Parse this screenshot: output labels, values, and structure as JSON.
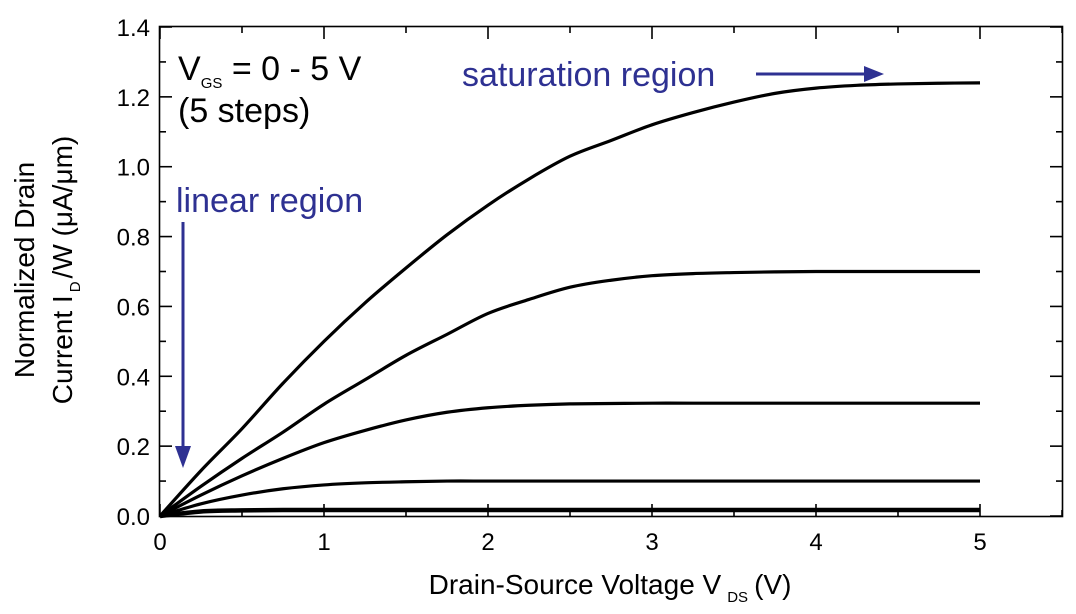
{
  "chart_data": {
    "type": "line",
    "xlabel_main": "Drain-Source Voltage V",
    "xlabel_sub": "DS",
    "xlabel_unit": "(V)",
    "ylabel_line1": "Normalized Drain",
    "ylabel_line2_a": "Current I",
    "ylabel_line2_sub": "D",
    "ylabel_line2_b": "/W (μA/μm)",
    "xlim": [
      0,
      5.5
    ],
    "ylim": [
      0,
      1.4
    ],
    "xticks": [
      0,
      1,
      2,
      3,
      4,
      5
    ],
    "xtick_labels": [
      "0",
      "1",
      "2",
      "3",
      "4",
      "5"
    ],
    "yticks": [
      0,
      0.2,
      0.4,
      0.6,
      0.8,
      1.0,
      1.2,
      1.4
    ],
    "ytick_labels": [
      "0.0",
      "0.2",
      "0.4",
      "0.6",
      "0.8",
      "1.0",
      "1.2",
      "1.4"
    ],
    "grid": false,
    "series": [
      {
        "x": [
          0,
          0.25,
          0.5,
          0.75,
          1.0,
          1.25,
          1.5,
          1.75,
          2.0,
          2.25,
          2.5,
          2.75,
          3.0,
          3.25,
          3.5,
          3.75,
          4.0,
          4.25,
          4.5,
          4.75,
          5.0
        ],
        "values": [
          0.0,
          0.013,
          0.016,
          0.017,
          0.017,
          0.017,
          0.017,
          0.017,
          0.017,
          0.017,
          0.017,
          0.017,
          0.017,
          0.017,
          0.017,
          0.017,
          0.017,
          0.017,
          0.017,
          0.017,
          0.017
        ]
      },
      {
        "x": [
          0,
          0.25,
          0.5,
          0.75,
          1.0,
          1.25,
          1.5,
          1.75,
          2.0,
          2.25,
          2.5,
          2.75,
          3.0,
          3.25,
          3.5,
          3.75,
          4.0,
          4.25,
          4.5,
          4.75,
          5.0
        ],
        "values": [
          0.0,
          0.035,
          0.06,
          0.078,
          0.089,
          0.095,
          0.098,
          0.1,
          0.1,
          0.1,
          0.1,
          0.1,
          0.1,
          0.1,
          0.1,
          0.1,
          0.1,
          0.1,
          0.1,
          0.1,
          0.1
        ]
      },
      {
        "x": [
          0,
          0.25,
          0.5,
          0.75,
          1.0,
          1.25,
          1.5,
          1.75,
          2.0,
          2.25,
          2.5,
          2.75,
          3.0,
          3.25,
          3.5,
          3.75,
          4.0,
          4.25,
          4.5,
          4.75,
          5.0
        ],
        "values": [
          0.0,
          0.06,
          0.115,
          0.165,
          0.21,
          0.245,
          0.275,
          0.297,
          0.31,
          0.317,
          0.321,
          0.322,
          0.323,
          0.323,
          0.323,
          0.323,
          0.323,
          0.323,
          0.323,
          0.323,
          0.323
        ]
      },
      {
        "x": [
          0,
          0.25,
          0.5,
          0.75,
          1.0,
          1.25,
          1.5,
          1.75,
          2.0,
          2.25,
          2.5,
          2.75,
          3.0,
          3.25,
          3.5,
          3.75,
          4.0,
          4.25,
          4.5,
          4.75,
          5.0
        ],
        "values": [
          0.0,
          0.085,
          0.165,
          0.24,
          0.32,
          0.39,
          0.46,
          0.52,
          0.58,
          0.62,
          0.655,
          0.675,
          0.688,
          0.694,
          0.697,
          0.699,
          0.7,
          0.7,
          0.7,
          0.7,
          0.7
        ]
      },
      {
        "x": [
          0,
          0.25,
          0.5,
          0.75,
          1.0,
          1.25,
          1.5,
          1.75,
          2.0,
          2.25,
          2.5,
          2.75,
          3.0,
          3.25,
          3.5,
          3.75,
          4.0,
          4.25,
          4.5,
          4.75,
          5.0
        ],
        "values": [
          0.0,
          0.13,
          0.25,
          0.38,
          0.5,
          0.61,
          0.71,
          0.805,
          0.89,
          0.965,
          1.03,
          1.075,
          1.12,
          1.155,
          1.185,
          1.21,
          1.225,
          1.233,
          1.237,
          1.239,
          1.24
        ]
      }
    ],
    "annotations": {
      "vgs_main": "V",
      "vgs_sub": "GS",
      "vgs_rest": " = 0 - 5 V",
      "steps": "(5 steps)",
      "saturation": "saturation region",
      "linear": "linear region"
    },
    "annotation_color": "#2e3192",
    "line_color": "#000000"
  }
}
